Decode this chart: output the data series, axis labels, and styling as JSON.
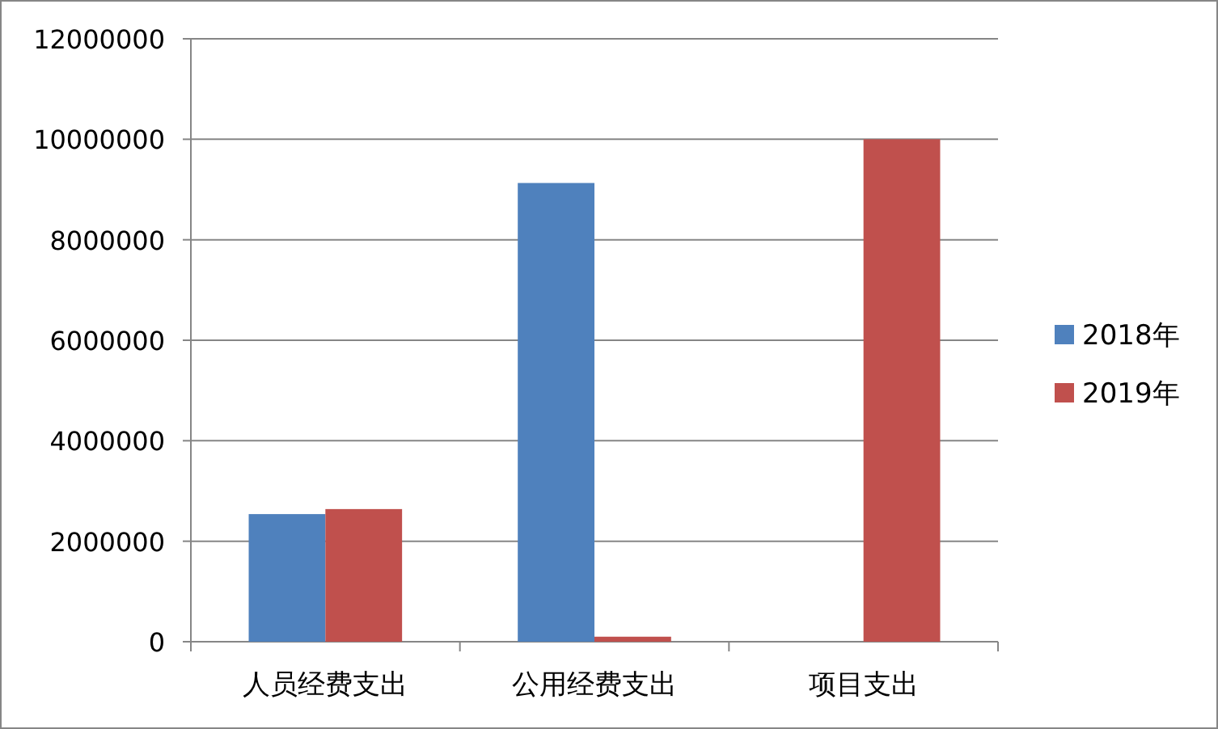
{
  "chart_data": {
    "type": "bar",
    "categories": [
      "人员经费支出",
      "公用经费支出",
      "项目支出"
    ],
    "series": [
      {
        "name": "2018年",
        "color": "#4f81bd",
        "values": [
          2540000,
          9130000,
          0
        ]
      },
      {
        "name": "2019年",
        "color": "#c0504d",
        "values": [
          2640000,
          100000,
          10000000
        ]
      }
    ],
    "ylim": [
      0,
      12000000
    ],
    "yticks": [
      0,
      2000000,
      4000000,
      6000000,
      8000000,
      10000000,
      12000000
    ],
    "grid": "y",
    "legend": "right"
  }
}
